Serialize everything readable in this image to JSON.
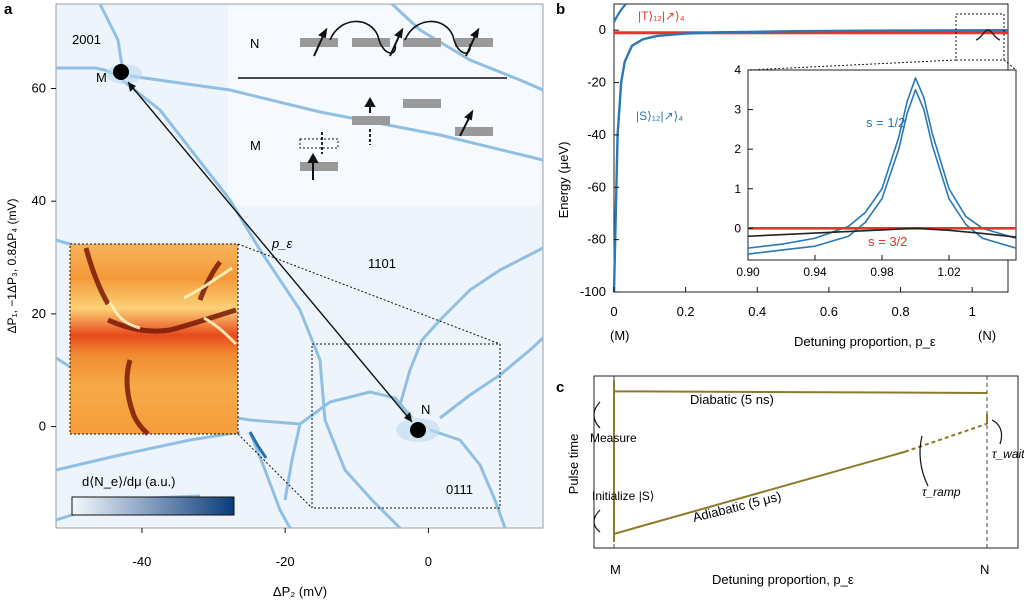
{
  "panels": {
    "a": {
      "letter": "a",
      "xlabel": "ΔP₂ (mV)",
      "ylabel": "ΔP₁, −1ΔP₃, 0.8ΔP₄ (mV)",
      "region_labels": [
        "2001",
        "1101",
        "0111"
      ],
      "point_labels": [
        "M",
        "N"
      ],
      "arrow_label": "p_ε",
      "colorbar_label": "d⟨N_e⟩/dμ (a.u.)",
      "inset_row_labels": [
        "N",
        "M"
      ]
    },
    "b": {
      "letter": "b",
      "xlabel": "Detuning proportion, p_ε",
      "ylabel": "Energy (μeV)",
      "bottom_labels": [
        "(M)",
        "(N)"
      ],
      "state_labels": [
        "|T⟩₁₂|↗⟩₄",
        "|S⟩₁₂|↗⟩₄"
      ],
      "inset_labels": [
        "s = 1/2",
        "s = 3/2"
      ]
    },
    "c": {
      "letter": "c",
      "xlabel": "Detuning proportion, p_ε",
      "ylabel": "Pulse time",
      "x_endpoints": [
        "M",
        "N"
      ],
      "annotations": [
        "Diabatic (5 ns)",
        "Adiabatic (5 μs)",
        "Measure",
        "Initialize |S⟩",
        "τ_ramp",
        "τ_wait"
      ]
    }
  },
  "chart_data": [
    {
      "type": "heatmap",
      "panel": "a",
      "xlabel": "ΔP₂ (mV)",
      "ylabel": "ΔP₁, −1ΔP₃, 0.8ΔP₄ (mV)",
      "xlim": [
        -52,
        16
      ],
      "ylim": [
        -18,
        75
      ],
      "xticks": [
        -40,
        -20,
        0
      ],
      "yticks": [
        0,
        20,
        40,
        60
      ],
      "points": [
        {
          "label": "M",
          "x": -43,
          "y": 62
        },
        {
          "label": "N",
          "x": -0.5,
          "y": 0
        }
      ],
      "regions": [
        "2001",
        "1101",
        "0111"
      ],
      "colorbar": {
        "label": "d⟨N_e⟩/dμ (a.u.)",
        "colors": [
          "#f4f8fc",
          "#0a3c7a"
        ]
      },
      "accent": "#5aa0d2"
    },
    {
      "type": "line",
      "panel": "b",
      "xlabel": "Detuning proportion, p_ε",
      "ylabel": "Energy (μeV)",
      "xlim": [
        0,
        1.1
      ],
      "ylim": [
        -100,
        10
      ],
      "xticks": [
        0,
        0.2,
        0.4,
        0.6,
        0.8,
        1.0
      ],
      "yticks": [
        0,
        -20,
        -40,
        -60,
        -80,
        -100
      ],
      "series": [
        {
          "name": "|T⟩₁₂|↗⟩₄",
          "color": "#e8332f",
          "x": [
            0,
            0.2,
            0.4,
            0.6,
            0.8,
            1.0,
            1.1
          ],
          "y": [
            -1,
            -1,
            -1,
            -1,
            -1,
            -1,
            -1
          ]
        },
        {
          "name": "|S⟩₁₂|↗⟩₄",
          "color": "#2a78b6",
          "x": [
            0,
            0.005,
            0.01,
            0.02,
            0.03,
            0.05,
            0.08,
            0.12,
            0.2,
            0.3,
            0.5,
            0.7,
            0.9,
            1.0,
            1.1
          ],
          "y": [
            -100,
            -70,
            -40,
            -20,
            -12,
            -6,
            -3.5,
            -2.2,
            -1.3,
            -0.8,
            -0.4,
            -0.2,
            -0.1,
            -0.05,
            0
          ]
        }
      ],
      "inset": {
        "xlim": [
          0.9,
          1.06
        ],
        "ylim": [
          -0.8,
          4
        ],
        "xticks": [
          0.9,
          0.94,
          0.98,
          1.02
        ],
        "yticks": [
          0,
          1,
          2,
          3,
          4
        ],
        "series": [
          {
            "name": "s = 1/2",
            "color": "#2a78b6",
            "x": [
              0.9,
              0.92,
              0.94,
              0.96,
              0.97,
              0.98,
              0.99,
              0.995,
              1.0,
              1.005,
              1.01,
              1.02,
              1.03,
              1.04,
              1.06
            ],
            "y": [
              -0.5,
              -0.4,
              -0.25,
              0.05,
              0.4,
              1.0,
              2.3,
              3.2,
              3.8,
              3.3,
              2.4,
              1.0,
              0.3,
              0.0,
              -0.25
            ]
          },
          {
            "name": "s = 1/2 (lower)",
            "color": "#2a78b6",
            "x": [
              0.9,
              0.92,
              0.94,
              0.96,
              0.97,
              0.98,
              0.99,
              0.995,
              1.0,
              1.005,
              1.01,
              1.02,
              1.03,
              1.04,
              1.06
            ],
            "y": [
              -0.65,
              -0.55,
              -0.45,
              -0.2,
              0.15,
              0.75,
              2.0,
              2.9,
              3.5,
              3.0,
              2.1,
              0.75,
              0.1,
              -0.25,
              -0.5
            ]
          },
          {
            "name": "s = 3/2",
            "color": "#e8332f",
            "x": [
              0.9,
              1.06
            ],
            "y": [
              0,
              0
            ]
          },
          {
            "name": "black curve",
            "color": "#222222",
            "x": [
              0.9,
              0.94,
              0.98,
              1.0,
              1.02,
              1.04,
              1.06
            ],
            "y": [
              -0.2,
              -0.12,
              -0.04,
              0,
              -0.05,
              -0.13,
              -0.22
            ]
          }
        ]
      }
    },
    {
      "type": "line",
      "panel": "c",
      "xlabel": "Detuning proportion, p_ε",
      "ylabel": "Pulse time",
      "categories": [
        "M",
        "N"
      ],
      "series": [
        {
          "name": "Diabatic (5 ns)",
          "color": "#8c7a2a",
          "x": [
            "M",
            "N"
          ],
          "y": [
            0.93,
            0.97
          ]
        },
        {
          "name": "Adiabatic (5 μs)",
          "color": "#8c7a2a",
          "x": [
            "M",
            "N"
          ],
          "y": [
            0.05,
            0.7
          ]
        }
      ]
    }
  ]
}
